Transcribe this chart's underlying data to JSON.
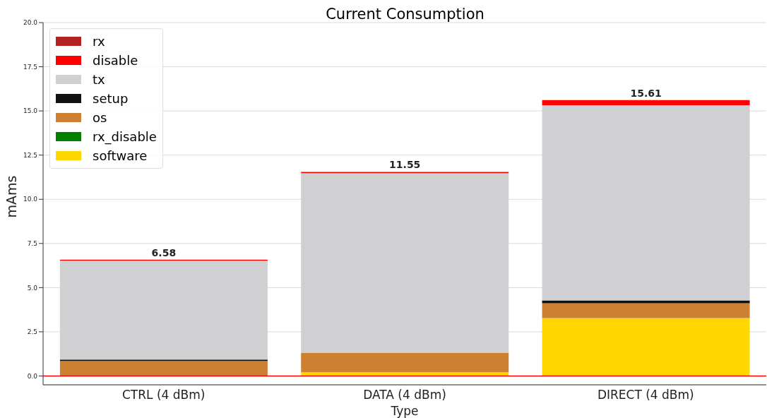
{
  "chart_data": {
    "type": "bar",
    "title": "Current Consumption",
    "xlabel": "Type",
    "ylabel": "mAms",
    "categories": [
      "CTRL (4 dBm)",
      "DATA (4 dBm)",
      "DIRECT (4 dBm)"
    ],
    "stacked": true,
    "series": [
      {
        "name": "software",
        "color": "#ffd700",
        "values": [
          0,
          0.21,
          3.28
        ]
      },
      {
        "name": "rx_disable",
        "color": "#008000",
        "values": [
          0,
          0,
          0
        ]
      },
      {
        "name": "os",
        "color": "#cd7f32",
        "values": [
          0.85,
          1.11,
          0.84
        ]
      },
      {
        "name": "setup",
        "color": "#111111",
        "values": [
          0.08,
          0,
          0.16
        ]
      },
      {
        "name": "tx",
        "color": "#d0d0d2",
        "values": [
          5.59,
          10.16,
          11.04
        ]
      },
      {
        "name": "disable",
        "color": "#ff0000",
        "values": [
          0.06,
          0.07,
          0.29
        ]
      },
      {
        "name": "rx",
        "color": "#b22222",
        "values": [
          0,
          0,
          0
        ]
      }
    ],
    "totals": [
      "6.58",
      "11.55",
      "15.61"
    ],
    "ylim": [
      -0.5,
      20
    ],
    "yticks": [
      {
        "value": 0,
        "label": "0.0"
      },
      {
        "value": 2.5,
        "label": "2.5"
      },
      {
        "value": 5,
        "label": "5.0"
      },
      {
        "value": 7.5,
        "label": "7.5"
      },
      {
        "value": 10,
        "label": "10.0"
      },
      {
        "value": 12.5,
        "label": "12.5"
      },
      {
        "value": 15,
        "label": "15.0"
      },
      {
        "value": 17.5,
        "label": "17.5"
      },
      {
        "value": 20,
        "label": "20.0"
      }
    ],
    "grid": "y",
    "legend": "top left",
    "ref_lines": [
      {
        "axis": "y",
        "value": 0,
        "color": "#ff0000"
      }
    ]
  }
}
